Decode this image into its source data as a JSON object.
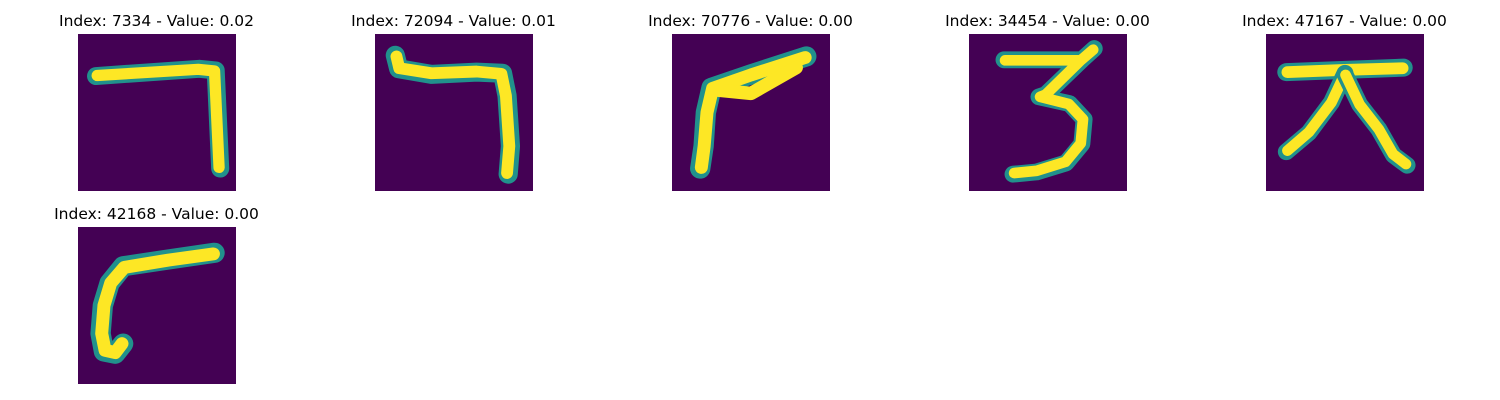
{
  "colors": {
    "background": "#440154",
    "stroke": "#fde725",
    "edge": "#35b779",
    "edge2": "#21918c"
  },
  "tiles": [
    {
      "title": "Index: 7334 - Value: 0.02",
      "glyph": "hook-right"
    },
    {
      "title": "Index: 72094 - Value: 0.01",
      "glyph": "hook-right-bent"
    },
    {
      "title": "Index: 70776 - Value: 0.00",
      "glyph": "angle-up"
    },
    {
      "title": "Index: 34454 - Value: 0.00",
      "glyph": "three"
    },
    {
      "title": "Index: 47167 - Value: 0.00",
      "glyph": "da"
    },
    {
      "title": "Index: 42168 - Value: 0.00",
      "glyph": "hook-left"
    }
  ]
}
